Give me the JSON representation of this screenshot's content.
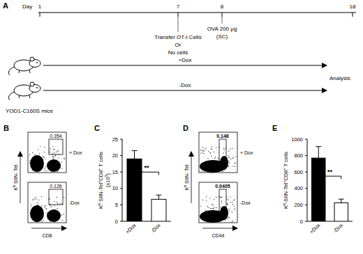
{
  "timeline": {
    "panel_label": "A",
    "axis_label": "Day",
    "days": [
      {
        "day": 1
      },
      {
        "day": 7,
        "event": [
          "Transfer OT-I Cells",
          "Or",
          "No cells"
        ]
      },
      {
        "day": 8,
        "event": [
          "OVA 200 μg",
          "(SC)"
        ]
      },
      {
        "day": 18
      }
    ],
    "mouse_label": "YOD1-C160S mice",
    "groups": [
      "+Dox",
      "-Dox"
    ],
    "end_label": "Analysis"
  },
  "flow_panels": [
    {
      "panel_label": "B",
      "y_label": [
        {
          "text": "K"
        },
        {
          "text": "b",
          "sup": true
        },
        {
          "text": " SIIN- Tet"
        }
      ],
      "x_label": "CD8",
      "plots": [
        {
          "condition": "+ Dox",
          "gate_value": 0.354
        },
        {
          "condition": "-Dox",
          "gate_value": 0.126
        }
      ]
    },
    {
      "panel_label": "D",
      "y_label": [
        {
          "text": "K"
        },
        {
          "text": "b",
          "sup": true
        },
        {
          "text": " SIIN- Tet"
        }
      ],
      "x_label": "CD44",
      "plots": [
        {
          "condition": "+ Dox",
          "gate_value": 0.148
        },
        {
          "condition": "-Dox",
          "gate_value": 0.0405
        }
      ]
    }
  ],
  "chart_data": [
    {
      "type": "bar",
      "panel_label": "C",
      "y_label": [
        [
          {
            "text": "K"
          },
          {
            "text": "b",
            "sup": true
          },
          {
            "text": " SIIN-Tet"
          },
          {
            "text": "+",
            "sup": true
          },
          {
            "text": "CD8"
          },
          {
            "text": "+",
            "sup": true
          },
          {
            "text": " T cells"
          }
        ],
        [
          {
            "text": "(x10"
          },
          {
            "text": "3",
            "sup": true
          },
          {
            "text": ")"
          }
        ]
      ],
      "categories": [
        "+Dox",
        "-Dox"
      ],
      "values": [
        19,
        6.7
      ],
      "errors": [
        2.5,
        1.3
      ],
      "colors": [
        "#000000",
        "#ffffff"
      ],
      "ylim": [
        0,
        25
      ],
      "yticks": [
        0,
        5,
        10,
        15,
        20,
        25
      ],
      "annotations": [
        "**"
      ]
    },
    {
      "type": "bar",
      "panel_label": "E",
      "y_label": [
        [
          {
            "text": "K"
          },
          {
            "text": "b",
            "sup": true
          },
          {
            "text": "-SIIN-Tet"
          },
          {
            "text": "+",
            "sup": true
          },
          {
            "text": "CD8"
          },
          {
            "text": "+",
            "sup": true
          },
          {
            "text": " T cells"
          }
        ]
      ],
      "categories": [
        "+Dox",
        "-Dox"
      ],
      "values": [
        770,
        225
      ],
      "errors": [
        140,
        45
      ],
      "colors": [
        "#000000",
        "#ffffff"
      ],
      "ylim": [
        0,
        1000
      ],
      "yticks": [
        0,
        200,
        400,
        600,
        800,
        1000
      ],
      "annotations": [
        "**"
      ]
    }
  ]
}
